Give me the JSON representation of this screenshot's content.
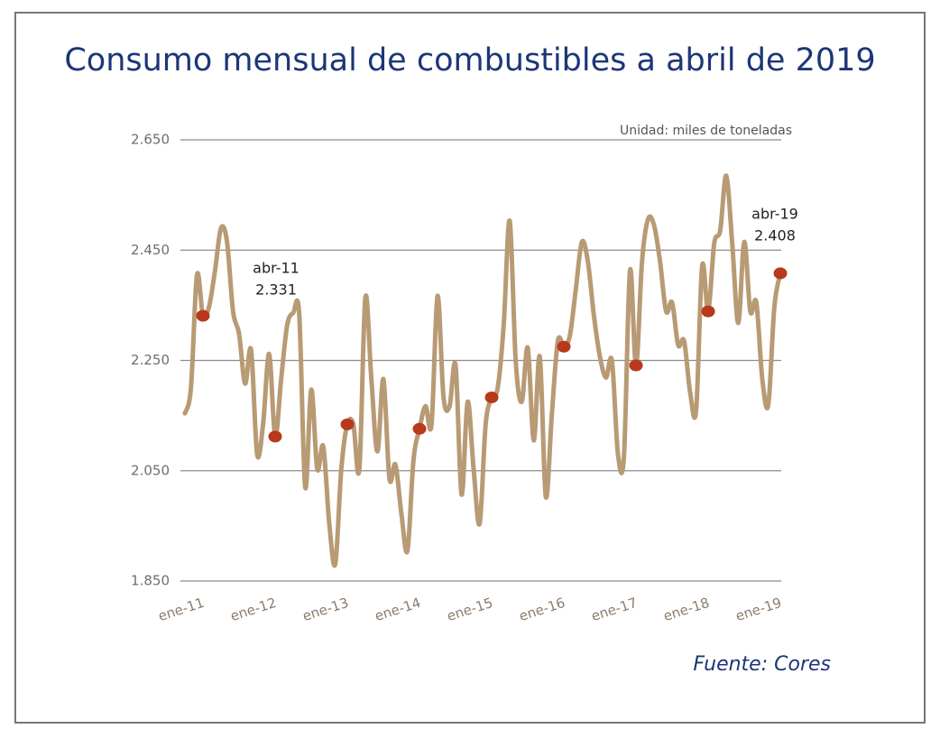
{
  "chart_data": {
    "type": "line",
    "title": "Consumo mensual de combustibles a abril de 2019",
    "unit_note": "Unidad: miles de toneladas",
    "source": "Fuente: Cores",
    "categories": [
      "ene-11",
      null,
      null,
      null,
      null,
      null,
      null,
      null,
      null,
      null,
      null,
      null,
      "ene-12",
      null,
      null,
      null,
      null,
      null,
      null,
      null,
      null,
      null,
      null,
      null,
      "ene-13",
      null,
      null,
      null,
      null,
      null,
      null,
      null,
      null,
      null,
      null,
      null,
      "ene-14",
      null,
      null,
      null,
      null,
      null,
      null,
      null,
      null,
      null,
      null,
      null,
      "ene-15",
      null,
      null,
      null,
      null,
      null,
      null,
      null,
      null,
      null,
      null,
      null,
      "ene-16",
      null,
      null,
      null,
      null,
      null,
      null,
      null,
      null,
      null,
      null,
      null,
      "ene-17",
      null,
      null,
      null,
      null,
      null,
      null,
      null,
      null,
      null,
      null,
      null,
      "ene-18",
      null,
      null,
      null,
      null,
      null,
      null,
      null,
      null,
      null,
      null,
      null,
      "ene-19",
      null,
      null,
      null
    ],
    "series": [
      {
        "name": "Consumo",
        "color": "#b89a74",
        "values": [
          2154,
          2200,
          2405,
          2331,
          2347,
          2413,
          2490,
          2465,
          2339,
          2298,
          2208,
          2269,
          2080,
          2135,
          2262,
          2112,
          2216,
          2314,
          2336,
          2334,
          2020,
          2197,
          2053,
          2094,
          1954,
          1881,
          2053,
          2134,
          2134,
          2053,
          2364,
          2216,
          2085,
          2216,
          2036,
          2061,
          1971,
          1905,
          2069,
          2126,
          2167,
          2134,
          2367,
          2183,
          2167,
          2241,
          2007,
          2175,
          2053,
          1954,
          2134,
          2183,
          2200,
          2314,
          2503,
          2249,
          2175,
          2273,
          2105,
          2257,
          2003,
          2151,
          2285,
          2275,
          2295,
          2380,
          2465,
          2429,
          2331,
          2257,
          2219,
          2249,
          2080,
          2077,
          2413,
          2241,
          2429,
          2506,
          2495,
          2429,
          2339,
          2355,
          2278,
          2285,
          2192,
          2160,
          2421,
          2339,
          2462,
          2486,
          2585,
          2462,
          2318,
          2465,
          2339,
          2355,
          2216,
          2170,
          2347,
          2408
        ]
      }
    ],
    "markers": [
      3,
      15,
      27,
      39,
      51,
      63,
      75,
      87,
      99
    ],
    "marker_color": "#b8391c",
    "annotations": [
      {
        "label": "abr-11",
        "value": "2.331"
      },
      {
        "label": "abr-19",
        "value": "2.408"
      }
    ],
    "ylim": [
      1850,
      2650
    ],
    "yticks": [
      {
        "value": 1850,
        "label": "1.850"
      },
      {
        "value": 2050,
        "label": "2.050"
      },
      {
        "value": 2250,
        "label": "2.250"
      },
      {
        "value": 2450,
        "label": "2.450"
      },
      {
        "value": 2650,
        "label": "2.650"
      }
    ],
    "grid": true
  }
}
